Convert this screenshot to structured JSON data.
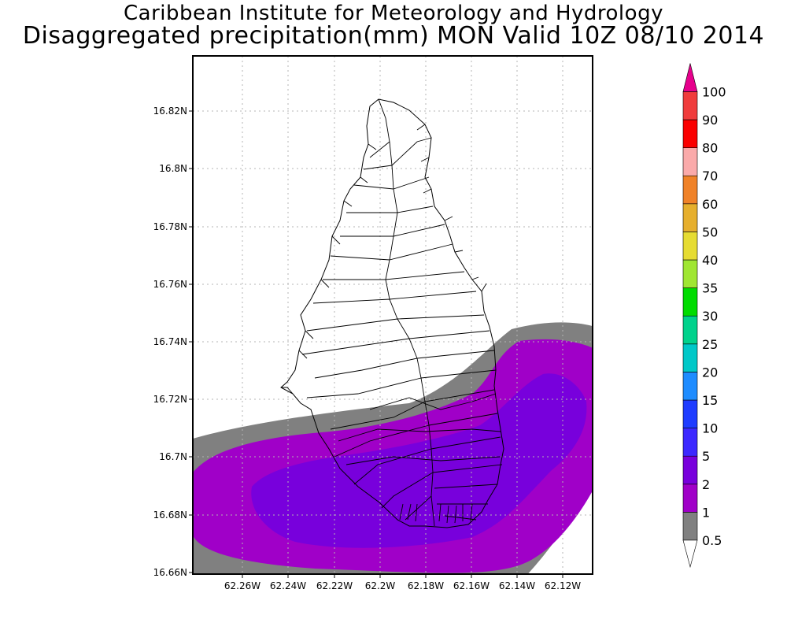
{
  "header": {
    "line1": "Caribbean Institute for Meteorology and Hydrology",
    "line2": "Disaggregated precipitation(mm) MON Valid 10Z 08/10 2014"
  },
  "map": {
    "lat_labels": [
      "16.82N",
      "16.8N",
      "16.78N",
      "16.76N",
      "16.74N",
      "16.72N",
      "16.7N",
      "16.68N",
      "16.66N"
    ],
    "lon_labels": [
      "62.26W",
      "62.24W",
      "62.22W",
      "62.2W",
      "62.18W",
      "62.16W",
      "62.14W",
      "62.12W"
    ],
    "lat_range": [
      16.66,
      16.837
    ],
    "lon_range": [
      62.275,
      62.105
    ],
    "grid": true,
    "shaded_levels_mm": {
      "gray": "0.5 - 1",
      "magenta": "1 - 2",
      "purple": "2 - 5"
    }
  },
  "colorbar": {
    "labels": [
      "0.5",
      "1",
      "2",
      "5",
      "10",
      "15",
      "20",
      "25",
      "30",
      "35",
      "40",
      "50",
      "60",
      "70",
      "80",
      "90",
      "100"
    ],
    "colors": [
      "#808080",
      "#a000c8",
      "#7800dc",
      "#3c28ff",
      "#1e3cff",
      "#1e8cff",
      "#00c8c8",
      "#00d28c",
      "#00dc00",
      "#a0e632",
      "#e6dc32",
      "#e6af2d",
      "#f08228",
      "#faaaaa",
      "#fa0000",
      "#f03c3c",
      "#e6008c"
    ],
    "top_arrow_color": "#e6008c",
    "bottom_arrow_color": "#ffffff"
  }
}
